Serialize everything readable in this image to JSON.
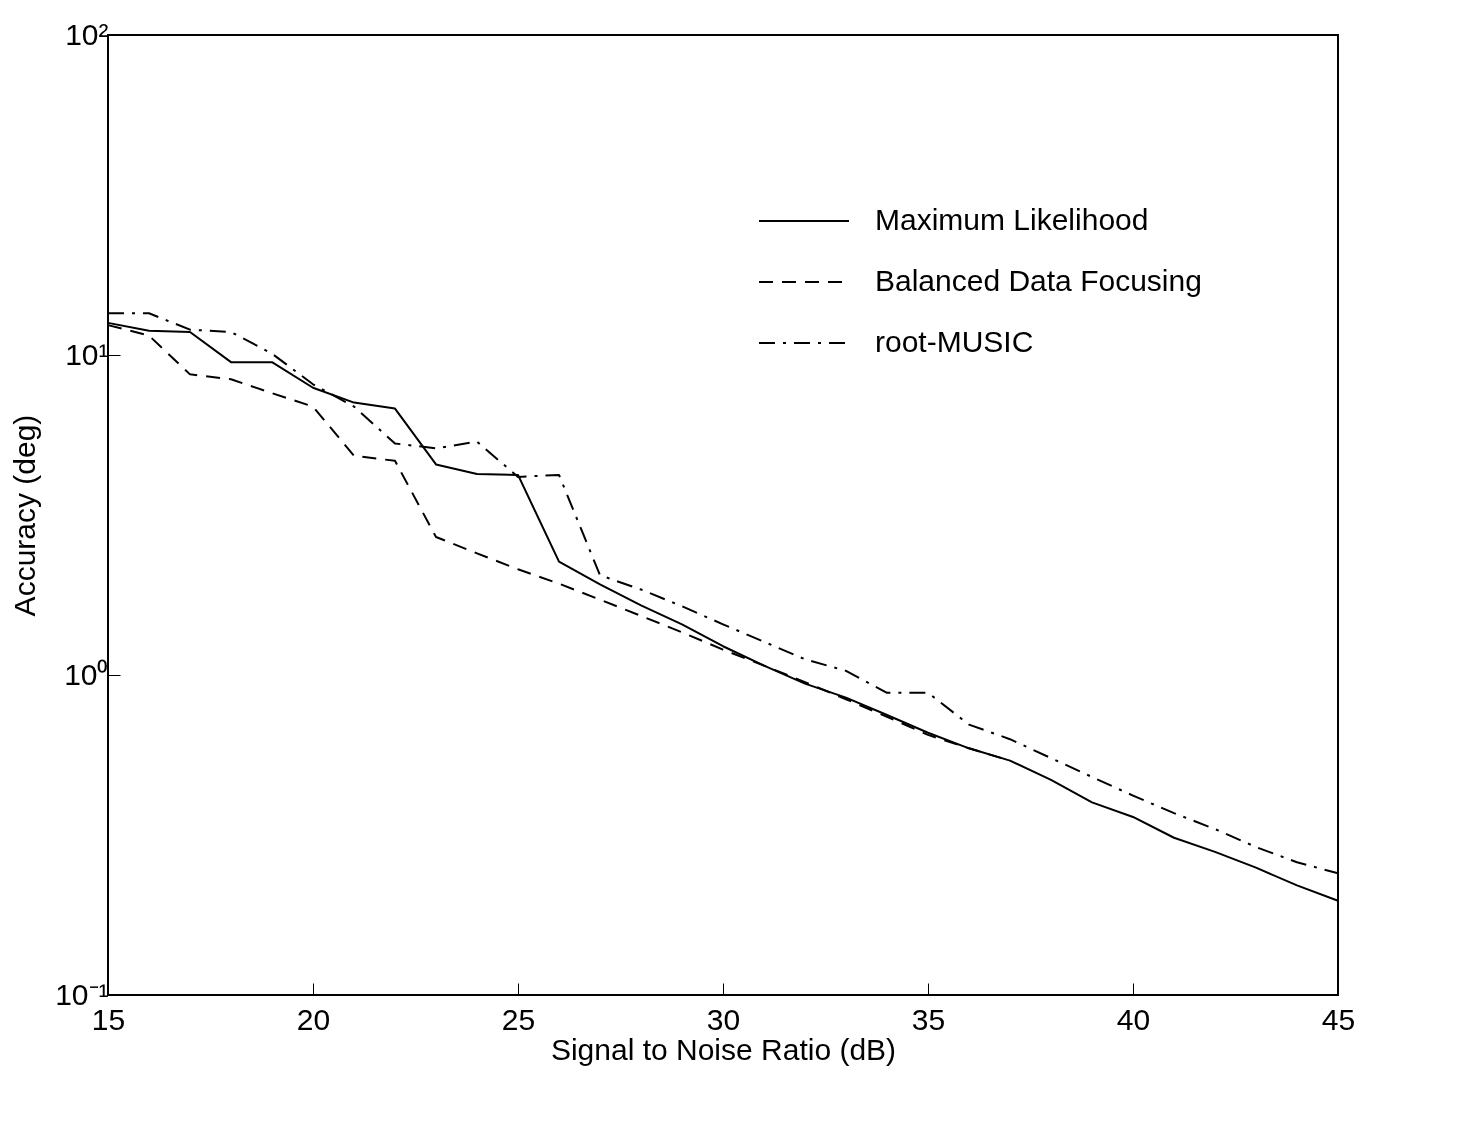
{
  "chart_data": {
    "type": "line",
    "xlabel": "Signal to Noise Ratio (dB)",
    "ylabel": "Accuracy (deg)",
    "x": [
      15,
      16,
      17,
      18,
      19,
      20,
      21,
      22,
      23,
      24,
      25,
      26,
      27,
      28,
      29,
      30,
      31,
      32,
      33,
      34,
      35,
      36,
      37,
      38,
      39,
      40,
      41,
      42,
      43,
      44,
      45
    ],
    "series": [
      {
        "name": "Maximum Likelihood",
        "color": "#000000",
        "line_style": "solid",
        "values": [
          12.6,
          11.9,
          11.8,
          9.5,
          9.5,
          7.9,
          7.1,
          6.8,
          4.55,
          4.25,
          4.22,
          2.26,
          1.92,
          1.65,
          1.44,
          1.23,
          1.07,
          0.94,
          0.85,
          0.75,
          0.66,
          0.59,
          0.54,
          0.47,
          0.4,
          0.36,
          0.31,
          0.28,
          0.25,
          0.22,
          0.197
        ]
      },
      {
        "name": "Balanced Data Focusing",
        "color": "#000000",
        "line_style": "dashed",
        "values": [
          12.4,
          11.5,
          8.7,
          8.4,
          7.6,
          6.9,
          4.84,
          4.67,
          2.7,
          2.4,
          2.14,
          1.93,
          1.72,
          1.53,
          1.36,
          1.2,
          1.07,
          0.95,
          0.84,
          0.74,
          0.65,
          0.59,
          0.54,
          null,
          null,
          null,
          null,
          null,
          null,
          null,
          null
        ]
      },
      {
        "name": "root-MUSIC",
        "color": "#000000",
        "line_style": "dashdot",
        "values": [
          13.5,
          13.5,
          12.0,
          11.8,
          10.1,
          8.1,
          6.9,
          5.29,
          5.11,
          5.36,
          4.16,
          4.22,
          2.05,
          1.85,
          1.64,
          1.44,
          1.27,
          1.12,
          1.03,
          0.88,
          0.88,
          0.7,
          0.63,
          0.55,
          0.48,
          0.42,
          0.37,
          0.33,
          0.29,
          0.26,
          0.24
        ]
      }
    ],
    "log": "y",
    "xlim": [
      15,
      45
    ],
    "xticks": [
      15,
      20,
      25,
      30,
      35,
      40,
      45
    ],
    "ylim": [
      0.1,
      100
    ],
    "yticks": [
      {
        "value": 0.1,
        "label": "10⁻¹"
      },
      {
        "value": 1,
        "label": "10⁰"
      },
      {
        "value": 10,
        "label": "10¹"
      },
      {
        "value": 100,
        "label": "10²"
      }
    ],
    "grid": false,
    "legend": "top right"
  }
}
